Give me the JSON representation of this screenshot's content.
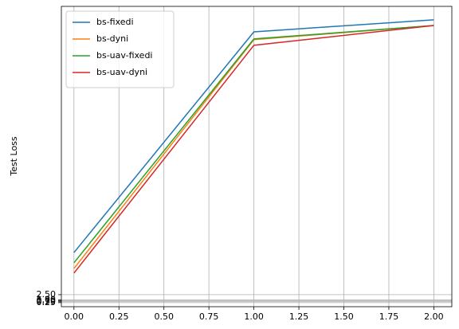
{
  "chart_data": {
    "type": "line",
    "ylabel": "Test Loss",
    "x": [
      0,
      1,
      2
    ],
    "series": [
      {
        "name": "bs-fixedi",
        "color": "#1f77b4",
        "values": [
          14.4,
          76.8,
          80.2
        ]
      },
      {
        "name": "bs-dyni",
        "color": "#ff7f0e",
        "values": [
          9.9,
          74.6,
          78.6
        ]
      },
      {
        "name": "bs-uav-fixedi",
        "color": "#2ca02c",
        "values": [
          11.5,
          74.8,
          78.6
        ]
      },
      {
        "name": "bs-uav-dyni",
        "color": "#d62728",
        "values": [
          8.6,
          73.0,
          78.6
        ]
      }
    ],
    "xlim": [
      -0.07,
      2.1
    ],
    "xticks": [
      {
        "value": 0,
        "label": "0.00"
      },
      {
        "value": 0.25,
        "label": "0.25"
      },
      {
        "value": 0.5,
        "label": "0.50"
      },
      {
        "value": 0.75,
        "label": "0.75"
      },
      {
        "value": 1,
        "label": "1.00"
      },
      {
        "value": 1.25,
        "label": "1.25"
      },
      {
        "value": 1.5,
        "label": "1.50"
      },
      {
        "value": 1.75,
        "label": "1.75"
      },
      {
        "value": 2,
        "label": "2.00"
      }
    ],
    "ylim": [
      -0.9,
      84
    ],
    "yticks": [
      {
        "value": 0.25,
        "label": "0.25"
      },
      {
        "value": 0.5,
        "label": "0.50"
      },
      {
        "value": 0.75,
        "label": "0.75"
      },
      {
        "value": 1,
        "label": "1.00"
      },
      {
        "value": 2.5,
        "label": "2.50"
      }
    ],
    "grid": true,
    "legend": "upper left"
  }
}
